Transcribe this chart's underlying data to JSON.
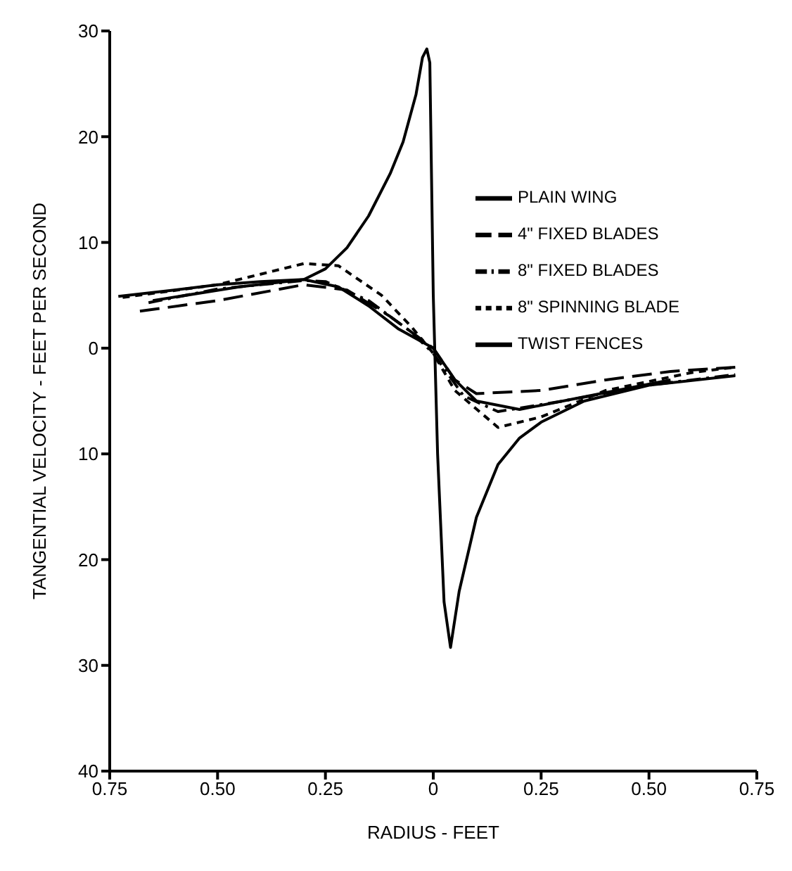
{
  "chart_data": {
    "type": "line",
    "xlabel": "RADIUS - FEET",
    "ylabel": "TANGENTIAL VELOCITY - FEET PER SECOND",
    "xlim": [
      -0.75,
      0.75
    ],
    "ylim": [
      -40,
      30
    ],
    "xticks": [
      {
        "value": -0.75,
        "label": "0.75"
      },
      {
        "value": -0.5,
        "label": "0.50"
      },
      {
        "value": -0.25,
        "label": "0.25"
      },
      0,
      {
        "value": 0.25,
        "label": "0.25"
      },
      {
        "value": 0.5,
        "label": "0.50"
      },
      {
        "value": 0.75,
        "label": "0.75"
      }
    ],
    "yticks": [
      {
        "value": -40,
        "label": "40"
      },
      {
        "value": -30,
        "label": "30"
      },
      {
        "value": -20,
        "label": "20"
      },
      {
        "value": -10,
        "label": "10"
      },
      0,
      10,
      20,
      30
    ],
    "grid": false,
    "legend": "right",
    "marker": "none",
    "series": [
      {
        "name": "PLAIN WING",
        "color": "#000000",
        "line_style": "solid",
        "x": [
          -0.73,
          -0.6,
          -0.5,
          -0.4,
          -0.3,
          -0.25,
          -0.2,
          -0.15,
          -0.1,
          -0.07,
          -0.04,
          -0.025,
          -0.015,
          -0.008,
          0,
          0.01,
          0.025,
          0.04,
          0.06,
          0.1,
          0.15,
          0.2,
          0.25,
          0.35,
          0.5,
          0.7
        ],
        "values": [
          4.9,
          5.5,
          6,
          6.3,
          6.5,
          7.5,
          9.5,
          12.5,
          16.5,
          19.5,
          24,
          27.5,
          28.3,
          27,
          5,
          -10,
          -24,
          -28.3,
          -23,
          -16,
          -11,
          -8.5,
          -7,
          -5,
          -3.5,
          -2.6
        ]
      },
      {
        "name": "4\" FIXED BLADES",
        "color": "#000000",
        "line_style": "dashed",
        "x": [
          -0.68,
          -0.5,
          -0.3,
          -0.2,
          -0.1,
          0,
          0.05,
          0.1,
          0.25,
          0.4,
          0.55,
          0.7
        ],
        "values": [
          3.5,
          4.5,
          6,
          5.5,
          3,
          0,
          -3,
          -4.3,
          -4,
          -3,
          -2.2,
          -1.8
        ]
      },
      {
        "name": "8\" FIXED BLADES",
        "color": "#000000",
        "line_style": "dashdot",
        "x": [
          -0.66,
          -0.5,
          -0.3,
          -0.25,
          -0.15,
          -0.05,
          0,
          0.07,
          0.15,
          0.3,
          0.5,
          0.7
        ],
        "values": [
          4.3,
          5.6,
          6.4,
          6.3,
          4.5,
          1.5,
          -0.5,
          -4.5,
          -6,
          -5,
          -3.5,
          -2.5
        ]
      },
      {
        "name": "8\" SPINNING BLADE",
        "color": "#000000",
        "line_style": "dotted",
        "x": [
          -0.72,
          -0.5,
          -0.3,
          -0.22,
          -0.12,
          -0.05,
          0,
          0.05,
          0.15,
          0.25,
          0.4,
          0.6,
          0.7
        ],
        "values": [
          4.8,
          6,
          8,
          7.8,
          5,
          2,
          -0.5,
          -4,
          -7.5,
          -6.5,
          -4,
          -2.3,
          -1.8
        ]
      },
      {
        "name": "TWIST FENCES",
        "color": "#000000",
        "line_style": "solid",
        "x": [
          -0.65,
          -0.45,
          -0.3,
          -0.22,
          -0.15,
          -0.08,
          0,
          0.05,
          0.1,
          0.2,
          0.35,
          0.5,
          0.55
        ],
        "values": [
          4.5,
          5.8,
          6.5,
          5.8,
          4,
          1.8,
          0,
          -3,
          -5,
          -5.8,
          -4.6,
          -3.4,
          -3
        ]
      }
    ]
  }
}
